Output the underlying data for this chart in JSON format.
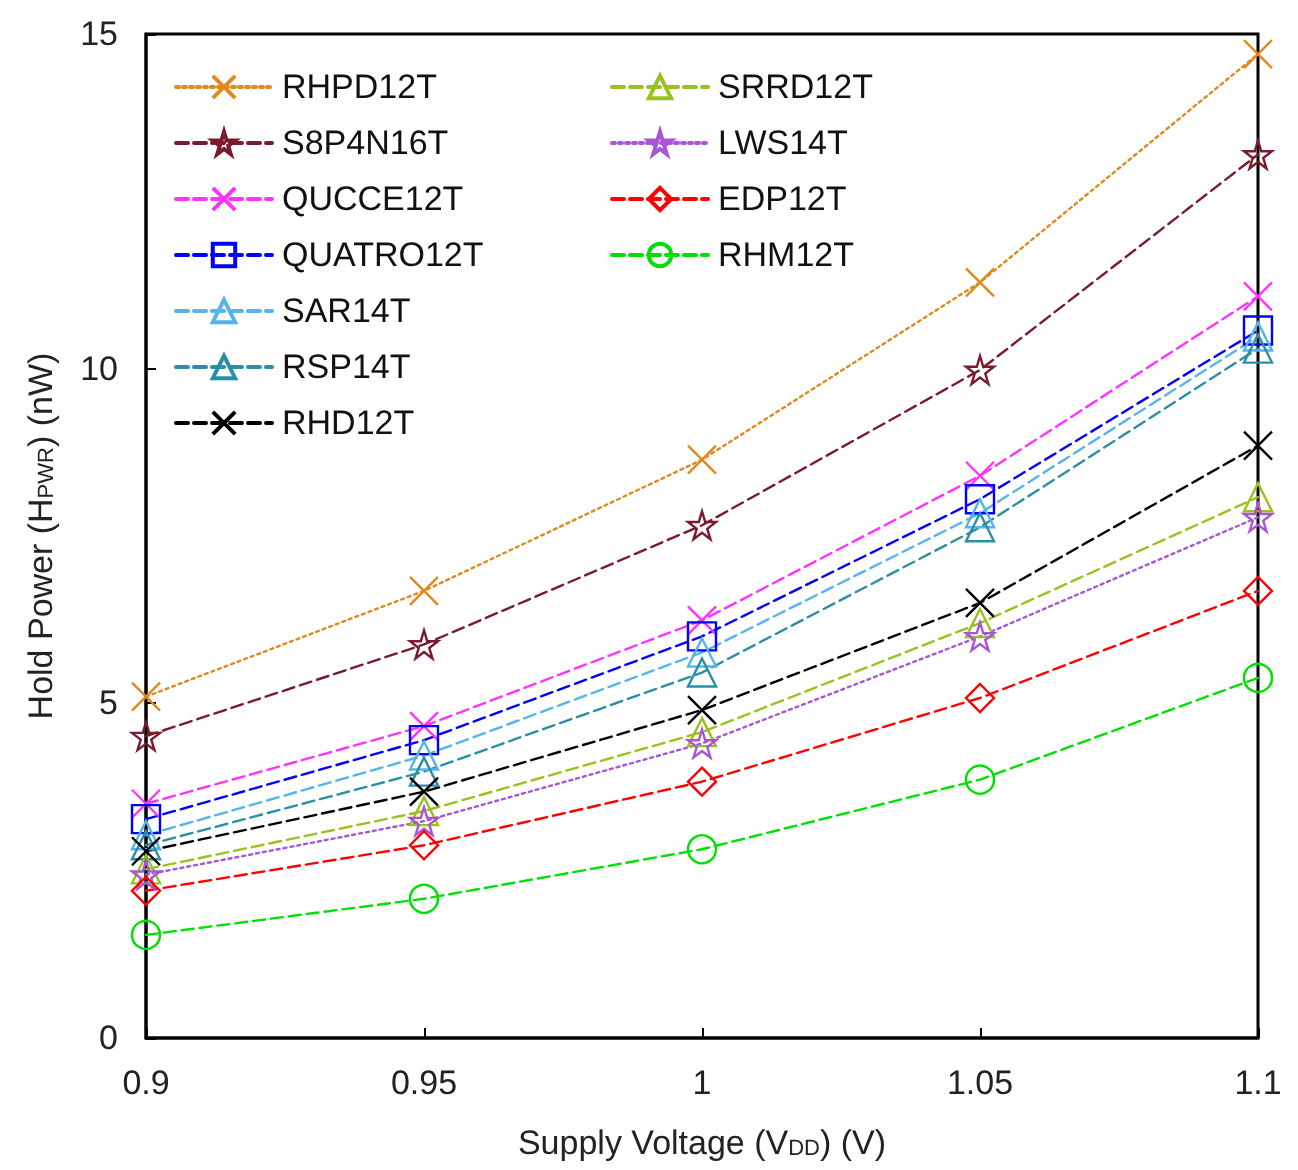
{
  "chart_data": {
    "type": "line",
    "xlabel": "Supply Voltage (V$_{DD}$) (V)",
    "ylabel": "Hold Power (H$_{PWR}$) (nW)",
    "x": [
      0.9,
      0.95,
      1,
      1.05,
      1.1
    ],
    "xlim": [
      0.9,
      1.1
    ],
    "xticks": [
      0.9,
      0.95,
      1,
      1.05,
      1.1
    ],
    "ylim": [
      0,
      15
    ],
    "yticks": [
      0,
      5,
      10,
      15
    ],
    "grid": false,
    "legend": "top left",
    "series": [
      {
        "name": "RHPD12T",
        "color": "#e08a1e",
        "marker": "cross",
        "line_style": "dotted",
        "values": [
          5.1,
          6.68,
          8.64,
          11.29,
          14.7
        ]
      },
      {
        "name": "S8P4N16T",
        "color": "#7b1a2e",
        "marker": "star",
        "line_style": "dashed",
        "values": [
          4.51,
          5.88,
          7.66,
          9.98,
          13.2
        ]
      },
      {
        "name": "QUCCE12T",
        "color": "#ff33ff",
        "marker": "cross",
        "line_style": "dashed",
        "values": [
          3.5,
          4.66,
          6.24,
          8.4,
          11.08
        ]
      },
      {
        "name": "QUATRO12T",
        "color": "#0000ff",
        "marker": "square",
        "line_style": "dashed",
        "values": [
          3.27,
          4.45,
          6.0,
          8.05,
          10.57
        ]
      },
      {
        "name": "SAR14T",
        "color": "#56b4e9",
        "marker": "triangle",
        "line_style": "dashed",
        "values": [
          3.03,
          4.22,
          5.76,
          7.84,
          10.48
        ]
      },
      {
        "name": "RSP14T",
        "color": "#2a8fa6",
        "marker": "triangle",
        "line_style": "dashed",
        "values": [
          2.88,
          3.98,
          5.46,
          7.63,
          10.3
        ]
      },
      {
        "name": "RHD12T",
        "color": "#000000",
        "marker": "cross",
        "line_style": "dashed",
        "values": [
          2.79,
          3.68,
          4.9,
          6.5,
          8.85
        ]
      },
      {
        "name": "SRRD12T",
        "color": "#99c21f",
        "marker": "triangle",
        "line_style": "dashed",
        "values": [
          2.52,
          3.39,
          4.57,
          6.2,
          8.08
        ]
      },
      {
        "name": "LWS14T",
        "color": "#a855d6",
        "marker": "star",
        "line_style": "dotted",
        "values": [
          2.44,
          3.24,
          4.4,
          6.0,
          7.78
        ]
      },
      {
        "name": "EDP12T",
        "color": "#ff0000",
        "marker": "diamond",
        "line_style": "dashed",
        "values": [
          2.2,
          2.88,
          3.83,
          5.08,
          6.68
        ]
      },
      {
        "name": "RHM12T",
        "color": "#00e000",
        "marker": "circle",
        "line_style": "dashed",
        "values": [
          1.54,
          2.08,
          2.82,
          3.86,
          5.38
        ]
      }
    ]
  }
}
